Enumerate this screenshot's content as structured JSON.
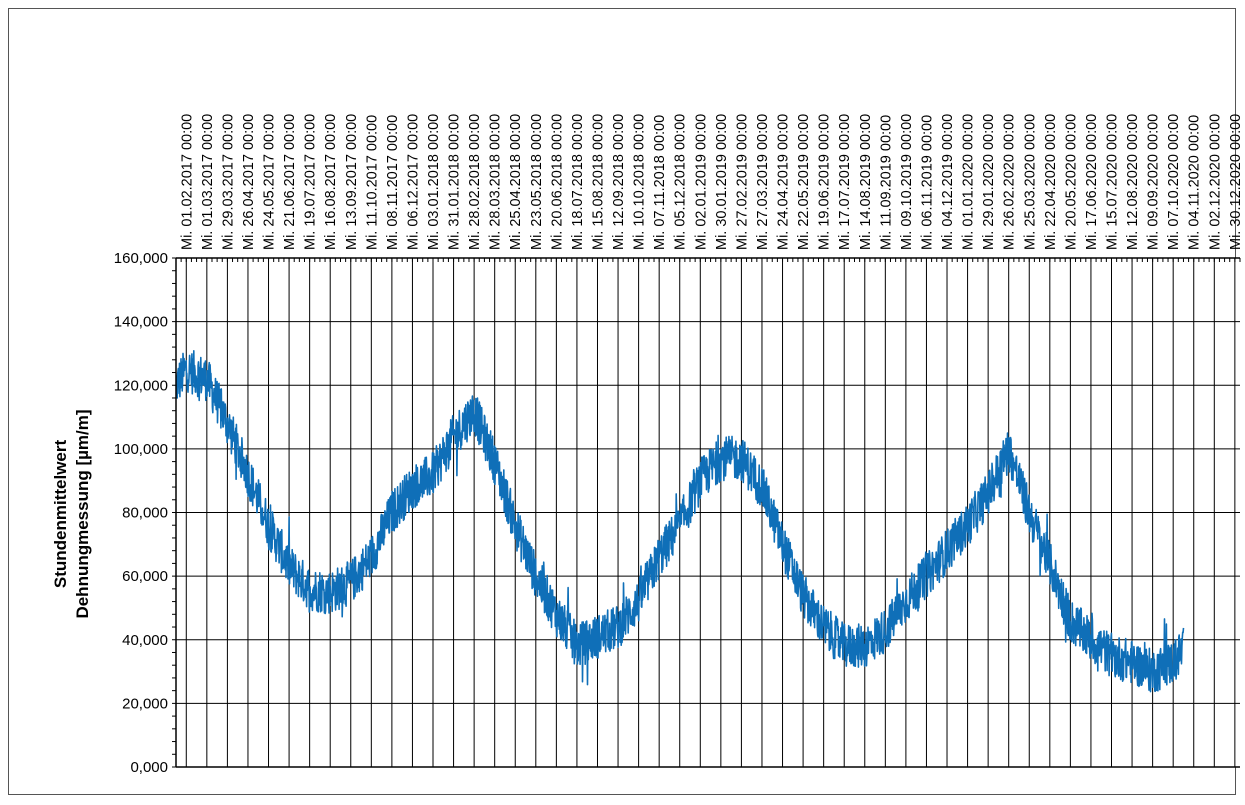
{
  "chart_data": {
    "type": "line",
    "title": "",
    "xlabel": "",
    "ylabel": [
      "Stundenmittelwert",
      "Dehnungmessung [µm/m]"
    ],
    "ylim": [
      0,
      160
    ],
    "x_range": [
      "2017-01-18",
      "2021-01-06"
    ],
    "grid": true,
    "legend": "none",
    "y_ticks": [
      "0,000",
      "20,000",
      "40,000",
      "60,000",
      "80,000",
      "100,000",
      "120,000",
      "140,000",
      "160,000"
    ],
    "x_ticks": [
      "Mi. 01.02.2017 00:00",
      "Mi. 01.03.2017 00:00",
      "Mi. 29.03.2017 00:00",
      "Mi. 26.04.2017 00:00",
      "Mi. 24.05.2017 00:00",
      "Mi. 21.06.2017 00:00",
      "Mi. 19.07.2017 00:00",
      "Mi. 16.08.2017 00:00",
      "Mi. 13.09.2017 00:00",
      "Mi. 11.10.2017 00:00",
      "Mi. 08.11.2017 00:00",
      "Mi. 06.12.2017 00:00",
      "Mi. 03.01.2018 00:00",
      "Mi. 31.01.2018 00:00",
      "Mi. 28.02.2018 00:00",
      "Mi. 28.03.2018 00:00",
      "Mi. 25.04.2018 00:00",
      "Mi. 23.05.2018 00:00",
      "Mi. 20.06.2018 00:00",
      "Mi. 18.07.2018 00:00",
      "Mi. 15.08.2018 00:00",
      "Mi. 12.09.2018 00:00",
      "Mi. 10.10.2018 00:00",
      "Mi. 07.11.2018 00:00",
      "Mi. 05.12.2018 00:00",
      "Mi. 02.01.2019 00:00",
      "Mi. 30.01.2019 00:00",
      "Mi. 27.02.2019 00:00",
      "Mi. 27.03.2019 00:00",
      "Mi. 24.04.2019 00:00",
      "Mi. 22.05.2019 00:00",
      "Mi. 19.06.2019 00:00",
      "Mi. 17.07.2019 00:00",
      "Mi. 14.08.2019 00:00",
      "Mi. 11.09.2019 00:00",
      "Mi. 09.10.2019 00:00",
      "Mi. 06.11.2019 00:00",
      "Mi. 04.12.2019 00:00",
      "Mi. 01.01.2020 00:00",
      "Mi. 29.01.2020 00:00",
      "Mi. 26.02.2020 00:00",
      "Mi. 25.03.2020 00:00",
      "Mi. 22.04.2020 00:00",
      "Mi. 20.05.2020 00:00",
      "Mi. 17.06.2020 00:00",
      "Mi. 15.07.2020 00:00",
      "Mi. 12.08.2020 00:00",
      "Mi. 09.09.2020 00:00",
      "Mi. 07.10.2020 00:00",
      "Mi. 04.11.2020 00:00",
      "Mi. 02.12.2020 00:00",
      "Mi. 30.12.2020 00:00"
    ],
    "series": [
      {
        "color": "#0f6fb8",
        "x": [
          "2017-01-18",
          "2017-02-01",
          "2017-03-01",
          "2017-03-29",
          "2017-04-26",
          "2017-05-24",
          "2017-06-21",
          "2017-07-19",
          "2017-08-16",
          "2017-09-13",
          "2017-10-11",
          "2017-11-08",
          "2017-12-06",
          "2018-01-03",
          "2018-01-31",
          "2018-02-28",
          "2018-03-28",
          "2018-04-25",
          "2018-05-23",
          "2018-06-20",
          "2018-07-18",
          "2018-08-15",
          "2018-09-12",
          "2018-10-10",
          "2018-11-07",
          "2018-12-05",
          "2019-01-02",
          "2019-01-30",
          "2019-02-27",
          "2019-03-27",
          "2019-04-24",
          "2019-05-22",
          "2019-06-19",
          "2019-07-17",
          "2019-08-14",
          "2019-09-11",
          "2019-10-09",
          "2019-11-06",
          "2019-12-04",
          "2020-01-01",
          "2020-01-29",
          "2020-02-26",
          "2020-03-25",
          "2020-04-22",
          "2020-05-20",
          "2020-06-17",
          "2020-07-15",
          "2020-08-12",
          "2020-09-09",
          "2020-10-07",
          "2020-10-21"
        ],
        "y": [
          120,
          125,
          122,
          108,
          92,
          76,
          63,
          56,
          55,
          58,
          66,
          80,
          88,
          92,
          104,
          112,
          96,
          76,
          60,
          48,
          38,
          41,
          44,
          52,
          66,
          76,
          90,
          97,
          97,
          88,
          70,
          54,
          44,
          38,
          38,
          43,
          52,
          60,
          68,
          76,
          86,
          100,
          80,
          64,
          46,
          40,
          35,
          33,
          30,
          33,
          37
        ],
        "noise": 7
      }
    ]
  }
}
